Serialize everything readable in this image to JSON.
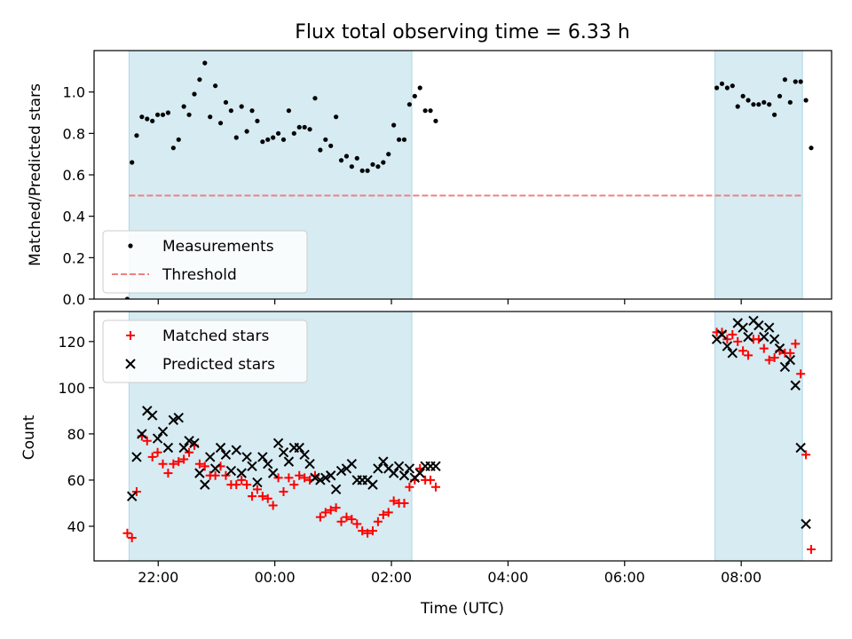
{
  "chart_data": [
    {
      "type": "scatter",
      "title": "Flux total observing time = 6.33 h",
      "ylabel": "Matched/Predicted stars",
      "xlabel": "",
      "x_unit": "hours relative to 00:00 UTC",
      "xlim": [
        -3.1,
        9.55
      ],
      "ylim": [
        0,
        1.2
      ],
      "yticks": [
        0.0,
        0.2,
        0.4,
        0.6,
        0.8,
        1.0
      ],
      "ytick_labels": [
        "0.0",
        "0.2",
        "0.4",
        "0.6",
        "0.8",
        "1.0"
      ],
      "xticks": [
        -2,
        0,
        2,
        4,
        6,
        8
      ],
      "grid": false,
      "legend_position": "lower-left",
      "observing_windows": [
        [
          -2.5,
          2.35
        ],
        [
          7.55,
          9.05
        ]
      ],
      "threshold": {
        "label": "Threshold",
        "value": 0.5,
        "x_range": [
          -2.5,
          9.05
        ],
        "color": "#f08080"
      },
      "series": [
        {
          "name": "Measurements",
          "marker": "dot",
          "color": "#000000",
          "points": [
            [
              -2.53,
              0.0
            ],
            [
              -2.45,
              0.66
            ],
            [
              -2.37,
              0.79
            ],
            [
              -2.28,
              0.88
            ],
            [
              -2.19,
              0.87
            ],
            [
              -2.1,
              0.86
            ],
            [
              -2.01,
              0.89
            ],
            [
              -1.92,
              0.89
            ],
            [
              -1.83,
              0.9
            ],
            [
              -1.74,
              0.73
            ],
            [
              -1.65,
              0.77
            ],
            [
              -1.56,
              0.93
            ],
            [
              -1.47,
              0.89
            ],
            [
              -1.38,
              0.99
            ],
            [
              -1.29,
              1.06
            ],
            [
              -1.2,
              1.14
            ],
            [
              -1.11,
              0.88
            ],
            [
              -1.02,
              1.03
            ],
            [
              -0.93,
              0.85
            ],
            [
              -0.84,
              0.95
            ],
            [
              -0.75,
              0.91
            ],
            [
              -0.66,
              0.78
            ],
            [
              -0.57,
              0.93
            ],
            [
              -0.48,
              0.81
            ],
            [
              -0.39,
              0.91
            ],
            [
              -0.3,
              0.86
            ],
            [
              -0.21,
              0.76
            ],
            [
              -0.12,
              0.77
            ],
            [
              -0.03,
              0.78
            ],
            [
              0.06,
              0.8
            ],
            [
              0.15,
              0.77
            ],
            [
              0.24,
              0.91
            ],
            [
              0.33,
              0.8
            ],
            [
              0.42,
              0.83
            ],
            [
              0.51,
              0.83
            ],
            [
              0.6,
              0.82
            ],
            [
              0.69,
              0.97
            ],
            [
              0.78,
              0.72
            ],
            [
              0.87,
              0.77
            ],
            [
              0.96,
              0.74
            ],
            [
              1.05,
              0.88
            ],
            [
              1.14,
              0.67
            ],
            [
              1.23,
              0.69
            ],
            [
              1.32,
              0.64
            ],
            [
              1.41,
              0.68
            ],
            [
              1.5,
              0.62
            ],
            [
              1.59,
              0.62
            ],
            [
              1.68,
              0.65
            ],
            [
              1.77,
              0.64
            ],
            [
              1.86,
              0.66
            ],
            [
              1.95,
              0.7
            ],
            [
              2.04,
              0.84
            ],
            [
              2.13,
              0.77
            ],
            [
              2.22,
              0.77
            ],
            [
              2.31,
              0.94
            ],
            [
              2.4,
              0.98
            ],
            [
              2.49,
              1.02
            ],
            [
              2.58,
              0.91
            ],
            [
              2.67,
              0.91
            ],
            [
              2.76,
              0.86
            ],
            [
              7.58,
              1.02
            ],
            [
              7.67,
              1.04
            ],
            [
              7.76,
              1.02
            ],
            [
              7.85,
              1.03
            ],
            [
              7.94,
              0.93
            ],
            [
              8.03,
              0.98
            ],
            [
              8.12,
              0.96
            ],
            [
              8.21,
              0.94
            ],
            [
              8.3,
              0.94
            ],
            [
              8.39,
              0.95
            ],
            [
              8.48,
              0.94
            ],
            [
              8.57,
              0.89
            ],
            [
              8.66,
              0.98
            ],
            [
              8.75,
              1.06
            ],
            [
              8.84,
              0.95
            ],
            [
              8.93,
              1.05
            ],
            [
              9.02,
              1.05
            ],
            [
              9.11,
              0.96
            ],
            [
              9.2,
              0.73
            ]
          ]
        }
      ]
    },
    {
      "type": "scatter",
      "title": "",
      "ylabel": "Count",
      "xlabel": "Time (UTC)",
      "x_unit": "hours relative to 00:00 UTC",
      "xlim": [
        -3.1,
        9.55
      ],
      "ylim": [
        25,
        133
      ],
      "yticks": [
        40,
        60,
        80,
        100,
        120
      ],
      "xticks": [
        -2,
        0,
        2,
        4,
        6,
        8
      ],
      "xtick_labels": [
        "22:00",
        "00:00",
        "02:00",
        "04:00",
        "06:00",
        "08:00"
      ],
      "grid": false,
      "legend_position": "upper-left",
      "observing_windows": [
        [
          -2.5,
          2.35
        ],
        [
          7.55,
          9.05
        ]
      ],
      "series": [
        {
          "name": "Matched stars",
          "marker": "plus",
          "color": "#ff0000",
          "points": [
            [
              -2.53,
              37
            ],
            [
              -2.45,
              35
            ],
            [
              -2.37,
              55
            ],
            [
              -2.28,
              79
            ],
            [
              -2.19,
              77
            ],
            [
              -2.1,
              70
            ],
            [
              -2.01,
              72
            ],
            [
              -1.92,
              67
            ],
            [
              -1.83,
              63
            ],
            [
              -1.74,
              67
            ],
            [
              -1.65,
              68
            ],
            [
              -1.56,
              69
            ],
            [
              -1.47,
              72
            ],
            [
              -1.38,
              75
            ],
            [
              -1.29,
              67
            ],
            [
              -1.2,
              66
            ],
            [
              -1.11,
              62
            ],
            [
              -1.02,
              62
            ],
            [
              -0.93,
              66
            ],
            [
              -0.84,
              62
            ],
            [
              -0.75,
              58
            ],
            [
              -0.66,
              58
            ],
            [
              -0.57,
              60
            ],
            [
              -0.48,
              58
            ],
            [
              -0.39,
              53
            ],
            [
              -0.3,
              56
            ],
            [
              -0.21,
              53
            ],
            [
              -0.12,
              52
            ],
            [
              -0.03,
              49
            ],
            [
              0.06,
              61
            ],
            [
              0.15,
              55
            ],
            [
              0.24,
              61
            ],
            [
              0.33,
              58
            ],
            [
              0.42,
              62
            ],
            [
              0.51,
              61
            ],
            [
              0.6,
              60
            ],
            [
              0.69,
              62
            ],
            [
              0.78,
              44
            ],
            [
              0.87,
              46
            ],
            [
              0.96,
              47
            ],
            [
              1.05,
              48
            ],
            [
              1.14,
              42
            ],
            [
              1.23,
              44
            ],
            [
              1.32,
              43
            ],
            [
              1.41,
              41
            ],
            [
              1.5,
              38
            ],
            [
              1.59,
              37
            ],
            [
              1.68,
              38
            ],
            [
              1.77,
              42
            ],
            [
              1.86,
              45
            ],
            [
              1.95,
              46
            ],
            [
              2.04,
              51
            ],
            [
              2.13,
              50
            ],
            [
              2.22,
              50
            ],
            [
              2.31,
              57
            ],
            [
              2.4,
              60
            ],
            [
              2.49,
              65
            ],
            [
              2.58,
              60
            ],
            [
              2.67,
              60
            ],
            [
              2.76,
              57
            ],
            [
              7.58,
              124
            ],
            [
              7.67,
              124
            ],
            [
              7.76,
              121
            ],
            [
              7.85,
              123
            ],
            [
              7.94,
              120
            ],
            [
              8.03,
              116
            ],
            [
              8.12,
              114
            ],
            [
              8.21,
              121
            ],
            [
              8.3,
              121
            ],
            [
              8.39,
              117
            ],
            [
              8.48,
              112
            ],
            [
              8.57,
              113
            ],
            [
              8.66,
              116
            ],
            [
              8.75,
              115
            ],
            [
              8.84,
              115
            ],
            [
              8.93,
              119
            ],
            [
              9.02,
              106
            ],
            [
              9.11,
              71
            ],
            [
              9.2,
              30
            ]
          ]
        },
        {
          "name": "Predicted stars",
          "marker": "x",
          "color": "#000000",
          "points": [
            [
              -2.45,
              53
            ],
            [
              -2.37,
              70
            ],
            [
              -2.28,
              80
            ],
            [
              -2.19,
              90
            ],
            [
              -2.1,
              88
            ],
            [
              -2.01,
              78
            ],
            [
              -1.92,
              81
            ],
            [
              -1.83,
              74
            ],
            [
              -1.74,
              86
            ],
            [
              -1.65,
              87
            ],
            [
              -1.56,
              74
            ],
            [
              -1.47,
              77
            ],
            [
              -1.38,
              76
            ],
            [
              -1.29,
              63
            ],
            [
              -1.2,
              58
            ],
            [
              -1.11,
              70
            ],
            [
              -1.02,
              65
            ],
            [
              -0.93,
              74
            ],
            [
              -0.84,
              71
            ],
            [
              -0.75,
              64
            ],
            [
              -0.66,
              73
            ],
            [
              -0.57,
              63
            ],
            [
              -0.48,
              70
            ],
            [
              -0.39,
              66
            ],
            [
              -0.3,
              59
            ],
            [
              -0.21,
              70
            ],
            [
              -0.12,
              67
            ],
            [
              -0.03,
              63
            ],
            [
              0.06,
              76
            ],
            [
              0.15,
              72
            ],
            [
              0.24,
              68
            ],
            [
              0.33,
              74
            ],
            [
              0.42,
              74
            ],
            [
              0.51,
              71
            ],
            [
              0.6,
              67
            ],
            [
              0.69,
              61
            ],
            [
              0.78,
              60
            ],
            [
              0.87,
              61
            ],
            [
              0.96,
              62
            ],
            [
              1.05,
              56
            ],
            [
              1.14,
              64
            ],
            [
              1.23,
              65
            ],
            [
              1.32,
              67
            ],
            [
              1.41,
              60
            ],
            [
              1.5,
              60
            ],
            [
              1.59,
              60
            ],
            [
              1.68,
              58
            ],
            [
              1.77,
              65
            ],
            [
              1.86,
              68
            ],
            [
              1.95,
              65
            ],
            [
              2.04,
              63
            ],
            [
              2.13,
              66
            ],
            [
              2.22,
              62
            ],
            [
              2.31,
              65
            ],
            [
              2.4,
              61
            ],
            [
              2.49,
              63
            ],
            [
              2.58,
              66
            ],
            [
              2.67,
              66
            ],
            [
              2.76,
              66
            ],
            [
              7.58,
              121
            ],
            [
              7.67,
              123
            ],
            [
              7.76,
              118
            ],
            [
              7.85,
              115
            ],
            [
              7.94,
              128
            ],
            [
              8.03,
              126
            ],
            [
              8.12,
              122
            ],
            [
              8.21,
              129
            ],
            [
              8.3,
              127
            ],
            [
              8.39,
              122
            ],
            [
              8.48,
              126
            ],
            [
              8.57,
              121
            ],
            [
              8.66,
              117
            ],
            [
              8.75,
              109
            ],
            [
              8.84,
              112
            ],
            [
              8.93,
              101
            ],
            [
              9.02,
              74
            ],
            [
              9.11,
              41
            ]
          ]
        }
      ]
    }
  ]
}
